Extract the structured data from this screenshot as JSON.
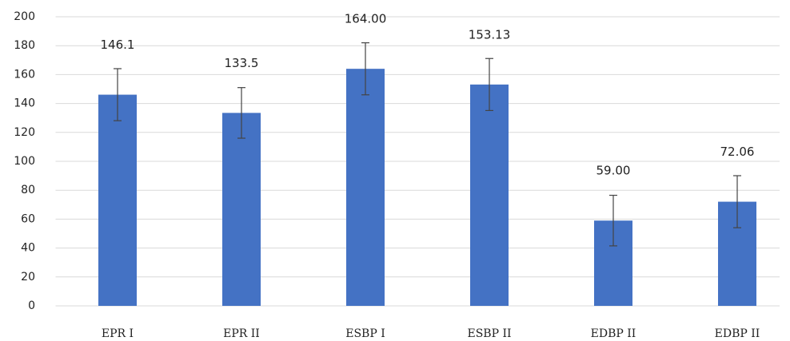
{
  "chart_data": {
    "type": "bar",
    "categories": [
      "EPR I",
      "EPR II",
      "ESBP I",
      "ESBP II",
      "EDBP II",
      "EDBP II"
    ],
    "values": [
      146.1,
      133.5,
      164.0,
      153.13,
      59.0,
      72.06
    ],
    "value_labels": [
      "146.1",
      "133.5",
      "164.00",
      "153.13",
      "59.00",
      "72.06"
    ],
    "errors": [
      18,
      17.5,
      18,
      18,
      17.5,
      18
    ],
    "color": "#4472c4",
    "ylim": [
      0,
      200
    ],
    "yticks": [
      0,
      20,
      40,
      60,
      80,
      100,
      120,
      140,
      160,
      180,
      200
    ],
    "grid": true
  }
}
